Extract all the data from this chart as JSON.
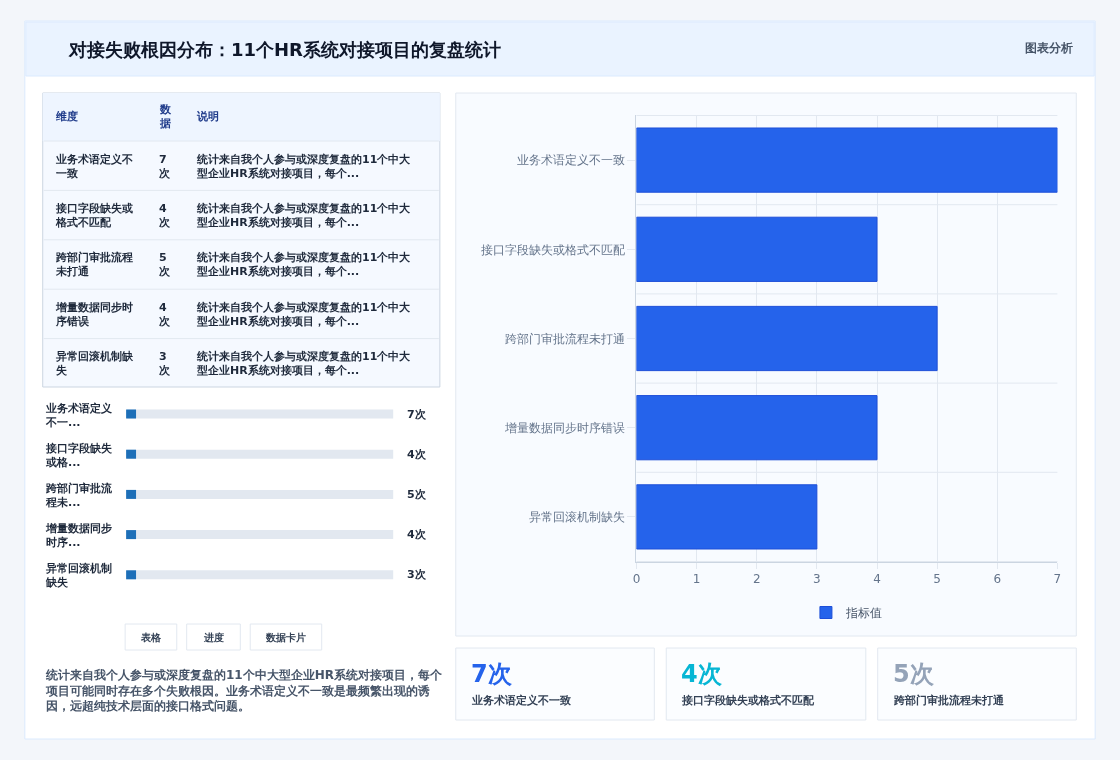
{
  "chart_data": [
    {
      "type": "other",
      "title": "对接失败根因分布：11个HR系统对接项目的复盘统计",
      "annotations": [
        "图表分析"
      ]
    },
    {
      "type": "other",
      "annotations": [
        "维度",
        "数据",
        "说明",
        "业务术语定义不一致",
        "7次",
        "统计来自我个人参与或深度复盘的11个中大型企业HR系统对接项目，每个...",
        "接口字段缺失或格式不匹配",
        "4次",
        "统计来自我个人参与或深度复盘的11个中大型企业HR系统对接项目，每个...",
        "跨部门审批流程未打通",
        "5次",
        "统计来自我个人参与或深度复盘的11个中大型企业HR系统对接项目，每个...",
        "增量数据同步时序错误",
        "4次",
        "统计来自我个人参与或深度复盘的11个中大型企业HR系统对接项目，每个...",
        "异常回滚机制缺失",
        "3次",
        "统计来自我个人参与或深度复盘的11个中大型企业HR系统对接项目，每个..."
      ]
    },
    {
      "type": "other",
      "categories": [
        "业务术语定义不一...",
        "接口字段缺失或格...",
        "跨部门审批流程未...",
        "增量数据同步时序...",
        "异常回滚机制缺失"
      ],
      "value_labels": [
        "7次",
        "4次",
        "5次",
        "4次",
        "3次"
      ]
    },
    {
      "type": "other",
      "annotations": [
        "表格",
        "进度",
        "数据卡片",
        "统计来自我个人参与或深度复盘的11个中大型企业HR系统对接项目，每个项目可能同时存在多个失败根因。业务术语定义不一致是最频繁出现的诱因，远超纯技术层面的接口格式问题。"
      ]
    },
    {
      "type": "bar",
      "orientation": "horizontal",
      "categories": [
        "业务术语定义不一致",
        "接口字段缺失或格式不匹配",
        "跨部门审批流程未打通",
        "增量数据同步时序错误",
        "异常回滚机制缺失"
      ],
      "series": [
        {
          "name": "指标值",
          "color": "#2563eb",
          "values": [
            7,
            4,
            5,
            4,
            3
          ]
        }
      ],
      "xlim": [
        0,
        7
      ],
      "xticks": [
        0,
        1,
        2,
        3,
        4,
        5,
        6,
        7
      ],
      "grid": true,
      "legend": "bottom"
    },
    {
      "type": "other",
      "categories": [
        "业务术语定义不一致",
        "接口字段缺失或格式不匹配",
        "跨部门审批流程未打通"
      ],
      "value_labels": [
        "7次",
        "4次",
        "5次"
      ]
    }
  ]
}
